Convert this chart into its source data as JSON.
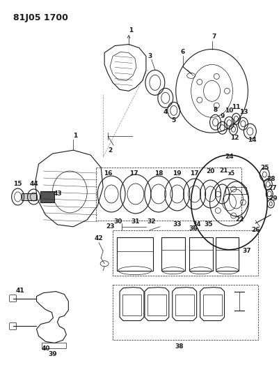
{
  "title": "81J05 1700",
  "bg_color": "#ffffff",
  "line_color": "#1a1a1a",
  "title_fontsize": 9,
  "label_fontsize": 6.5,
  "fig_width": 4.01,
  "fig_height": 5.33,
  "dpi": 100
}
